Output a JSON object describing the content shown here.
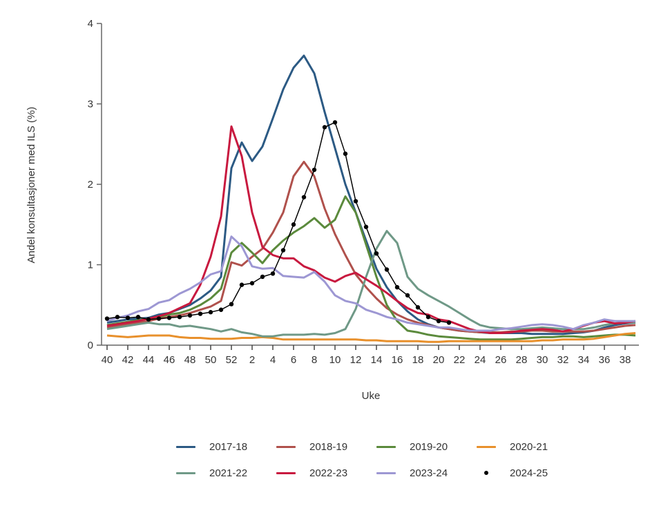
{
  "chart_data": {
    "type": "line",
    "title": "",
    "xlabel": "Uke",
    "ylabel": "Andel konsultasjoner med ILS (%)",
    "ylim": [
      0,
      4
    ],
    "yticks": [
      "0",
      "1",
      "2",
      "3",
      "4"
    ],
    "x": [
      40,
      41,
      42,
      43,
      44,
      45,
      46,
      47,
      48,
      49,
      50,
      51,
      52,
      1,
      2,
      3,
      4,
      5,
      6,
      7,
      8,
      9,
      10,
      11,
      12,
      13,
      14,
      15,
      16,
      17,
      18,
      19,
      20,
      21,
      22,
      23,
      24,
      25,
      26,
      27,
      28,
      29,
      30,
      31,
      32,
      33,
      34,
      35,
      36,
      37,
      38,
      39
    ],
    "xtick_labels": [
      "40",
      "42",
      "44",
      "46",
      "48",
      "50",
      "52",
      "2",
      "4",
      "6",
      "8",
      "10",
      "12",
      "14",
      "16",
      "18",
      "20",
      "22",
      "24",
      "26",
      "28",
      "30",
      "32",
      "34",
      "36",
      "38"
    ],
    "grid": false,
    "legend_position": "bottom",
    "series": [
      {
        "name": "2017-18",
        "color": "#2c5a84",
        "marker": false,
        "values": [
          0.28,
          0.3,
          0.32,
          0.33,
          0.34,
          0.38,
          0.4,
          0.45,
          0.5,
          0.58,
          0.68,
          0.85,
          2.2,
          2.52,
          2.29,
          2.47,
          2.82,
          3.18,
          3.45,
          3.6,
          3.38,
          2.9,
          2.45,
          2.0,
          1.65,
          1.3,
          0.95,
          0.72,
          0.55,
          0.42,
          0.32,
          0.26,
          0.22,
          0.2,
          0.18,
          0.17,
          0.16,
          0.15,
          0.15,
          0.15,
          0.15,
          0.14,
          0.14,
          0.14,
          0.14,
          0.15,
          0.16,
          0.18,
          0.22,
          0.25,
          0.27,
          0.28
        ]
      },
      {
        "name": "2018-19",
        "color": "#b0514c",
        "marker": false,
        "values": [
          0.22,
          0.24,
          0.26,
          0.28,
          0.3,
          0.33,
          0.35,
          0.37,
          0.4,
          0.44,
          0.48,
          0.55,
          1.03,
          0.99,
          1.1,
          1.2,
          1.4,
          1.65,
          2.1,
          2.28,
          2.1,
          1.7,
          1.38,
          1.12,
          0.88,
          0.72,
          0.58,
          0.46,
          0.38,
          0.32,
          0.28,
          0.25,
          0.22,
          0.2,
          0.18,
          0.17,
          0.16,
          0.16,
          0.16,
          0.17,
          0.17,
          0.18,
          0.18,
          0.17,
          0.17,
          0.17,
          0.17,
          0.18,
          0.2,
          0.22,
          0.24,
          0.25
        ]
      },
      {
        "name": "2019-20",
        "color": "#5b8a3c",
        "marker": false,
        "values": [
          0.25,
          0.27,
          0.29,
          0.31,
          0.33,
          0.35,
          0.38,
          0.4,
          0.44,
          0.5,
          0.58,
          0.7,
          1.15,
          1.27,
          1.15,
          1.02,
          1.18,
          1.3,
          1.4,
          1.48,
          1.58,
          1.46,
          1.56,
          1.85,
          1.65,
          1.25,
          0.85,
          0.5,
          0.3,
          0.18,
          0.16,
          0.13,
          0.11,
          0.1,
          0.09,
          0.08,
          0.07,
          0.07,
          0.07,
          0.07,
          0.08,
          0.09,
          0.1,
          0.1,
          0.11,
          0.11,
          0.1,
          0.11,
          0.12,
          0.13,
          0.13,
          0.12
        ]
      },
      {
        "name": "2020-21",
        "color": "#e8902c",
        "marker": false,
        "values": [
          0.12,
          0.11,
          0.1,
          0.11,
          0.12,
          0.12,
          0.12,
          0.1,
          0.09,
          0.09,
          0.08,
          0.08,
          0.08,
          0.09,
          0.09,
          0.1,
          0.09,
          0.07,
          0.07,
          0.07,
          0.07,
          0.07,
          0.07,
          0.07,
          0.07,
          0.06,
          0.06,
          0.05,
          0.05,
          0.05,
          0.05,
          0.04,
          0.04,
          0.05,
          0.05,
          0.05,
          0.05,
          0.05,
          0.05,
          0.05,
          0.05,
          0.05,
          0.06,
          0.06,
          0.07,
          0.07,
          0.07,
          0.08,
          0.1,
          0.12,
          0.14,
          0.15
        ]
      },
      {
        "name": "2021-22",
        "color": "#6f9987",
        "marker": false,
        "values": [
          0.2,
          0.22,
          0.24,
          0.26,
          0.28,
          0.26,
          0.26,
          0.23,
          0.24,
          0.22,
          0.2,
          0.17,
          0.2,
          0.16,
          0.14,
          0.11,
          0.11,
          0.13,
          0.13,
          0.13,
          0.14,
          0.13,
          0.15,
          0.2,
          0.45,
          0.85,
          1.2,
          1.42,
          1.27,
          0.85,
          0.7,
          0.62,
          0.55,
          0.48,
          0.4,
          0.32,
          0.25,
          0.22,
          0.21,
          0.2,
          0.2,
          0.21,
          0.22,
          0.21,
          0.2,
          0.2,
          0.2,
          0.22,
          0.25,
          0.27,
          0.28,
          0.28
        ]
      },
      {
        "name": "2022-23",
        "color": "#c8193f",
        "marker": false,
        "values": [
          0.24,
          0.26,
          0.28,
          0.3,
          0.33,
          0.36,
          0.4,
          0.46,
          0.52,
          0.75,
          1.1,
          1.6,
          2.72,
          2.35,
          1.65,
          1.22,
          1.12,
          1.08,
          1.08,
          0.98,
          0.93,
          0.84,
          0.79,
          0.86,
          0.9,
          0.82,
          0.74,
          0.65,
          0.55,
          0.46,
          0.4,
          0.38,
          0.32,
          0.3,
          0.25,
          0.2,
          0.17,
          0.15,
          0.15,
          0.16,
          0.18,
          0.19,
          0.2,
          0.19,
          0.17,
          0.2,
          0.24,
          0.28,
          0.3,
          0.27,
          0.28,
          0.3
        ]
      },
      {
        "name": "2023-24",
        "color": "#9d97d3",
        "marker": false,
        "values": [
          0.3,
          0.34,
          0.37,
          0.42,
          0.45,
          0.53,
          0.56,
          0.64,
          0.7,
          0.78,
          0.88,
          0.92,
          1.35,
          1.23,
          0.98,
          0.95,
          0.96,
          0.86,
          0.85,
          0.84,
          0.91,
          0.79,
          0.62,
          0.55,
          0.52,
          0.44,
          0.4,
          0.35,
          0.32,
          0.28,
          0.26,
          0.24,
          0.22,
          0.22,
          0.2,
          0.18,
          0.18,
          0.18,
          0.2,
          0.21,
          0.23,
          0.25,
          0.26,
          0.25,
          0.23,
          0.2,
          0.25,
          0.28,
          0.32,
          0.3,
          0.3,
          0.3
        ]
      },
      {
        "name": "2024-25",
        "color": "#000000",
        "marker": true,
        "values": [
          0.33,
          0.35,
          0.34,
          0.35,
          0.32,
          0.33,
          0.34,
          0.35,
          0.37,
          0.39,
          0.41,
          0.44,
          0.51,
          0.75,
          0.77,
          0.85,
          0.89,
          1.18,
          1.5,
          1.84,
          2.18,
          2.71,
          2.77,
          2.38,
          1.79,
          1.47,
          1.14,
          0.94,
          0.72,
          0.62,
          0.47,
          0.35,
          0.3,
          0.28,
          null,
          null,
          null,
          null,
          null,
          null,
          null,
          null,
          null,
          null,
          null,
          null,
          null,
          null,
          null,
          null,
          null,
          null
        ]
      }
    ]
  }
}
